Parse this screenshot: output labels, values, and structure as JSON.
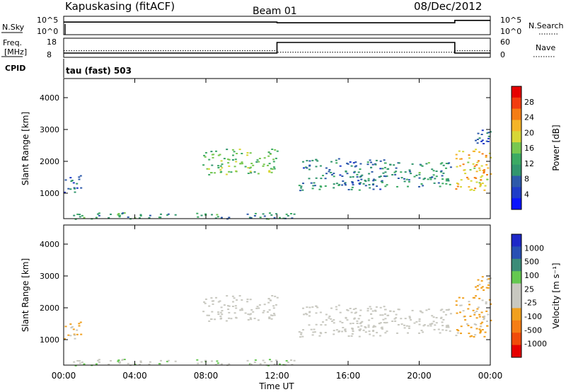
{
  "header": {
    "title": "Kapuskasing (fitACF)",
    "beam": "Beam 01",
    "date": "08/Dec/2012"
  },
  "strips": {
    "nsky_label": "N.Sky",
    "nsearch_label": "N.Search",
    "nsky_ticks": [
      "10^5",
      "10^0"
    ],
    "freq_label_1": "Freq.",
    "freq_label_2": "[MHz]",
    "freq_ticks": [
      "18",
      "8"
    ],
    "nave_label": "Nave",
    "nave_ticks": [
      "60",
      "0"
    ],
    "cpid_label": "CPID",
    "cpid_text": "tau (fast) 503"
  },
  "panels": {
    "ylabel": "Slant Range [km]",
    "yticks": [
      "4000",
      "3000",
      "2000",
      "1000"
    ],
    "xticks": [
      "00:00",
      "04:00",
      "08:00",
      "12:00",
      "16:00",
      "20:00",
      "00:00"
    ],
    "xlabel": "Time UT"
  },
  "power_scale": {
    "label": "Power [dB]",
    "ticks": [
      "28",
      "24",
      "20",
      "16",
      "12",
      "8",
      "4"
    ],
    "colors": [
      "#e60000",
      "#f23c0f",
      "#f57d14",
      "#f5b428",
      "#d7d737",
      "#78c850",
      "#3caa64",
      "#32966e",
      "#2d5aaa",
      "#1e3cc8",
      "#0a14ff"
    ]
  },
  "velocity_scale": {
    "label": "Velocity [m s⁻¹]",
    "ticks": [
      "1000",
      "500",
      "100",
      "25",
      "-25",
      "-100",
      "-500",
      "-1000"
    ],
    "colors": [
      "#1e28c8",
      "#2850b4",
      "#3c8c78",
      "#64c850",
      "#c8c8c0",
      "#c8c8c0",
      "#f0a01e",
      "#f57d14",
      "#f04b0a",
      "#e60000"
    ]
  },
  "chart_data": {
    "type": "heatmap",
    "x_unit": "hours UT",
    "xlim": [
      0,
      24
    ],
    "ylim": [
      200,
      4600
    ],
    "strips": {
      "nsky": [
        [
          0,
          3.5
        ],
        [
          12,
          3.5
        ],
        [
          12,
          3.3
        ],
        [
          22,
          3.3
        ],
        [
          22,
          4
        ],
        [
          24,
          4
        ]
      ],
      "nsearch": [
        [
          0,
          0.5
        ],
        [
          24,
          0.5
        ]
      ],
      "freq": [
        [
          0,
          10
        ],
        [
          12,
          10
        ],
        [
          12,
          16
        ],
        [
          22,
          16
        ],
        [
          22,
          10
        ],
        [
          24,
          10
        ]
      ],
      "nave": [
        [
          0,
          20
        ],
        [
          12,
          20
        ],
        [
          12,
          15
        ],
        [
          22,
          15
        ],
        [
          22,
          20
        ],
        [
          24,
          20
        ]
      ]
    },
    "echo_regions": [
      {
        "t": [
          0.0,
          1.0
        ],
        "range": [
          1000,
          1600
        ],
        "power": 6,
        "velocity": -100
      },
      {
        "t": [
          7.8,
          12.0
        ],
        "range": [
          1600,
          2400
        ],
        "power": 14,
        "velocity": 0
      },
      {
        "t": [
          13.2,
          18.0
        ],
        "range": [
          1100,
          2100
        ],
        "power": 8,
        "velocity": 0
      },
      {
        "t": [
          18.0,
          21.8
        ],
        "range": [
          1200,
          2000
        ],
        "power": 10,
        "velocity": 0
      },
      {
        "t": [
          22.0,
          24.0
        ],
        "range": [
          1100,
          2400
        ],
        "power": 20,
        "velocity": -100
      },
      {
        "t": [
          22.8,
          24.0
        ],
        "range": [
          2500,
          3000
        ],
        "power": 6,
        "velocity": -100
      },
      {
        "t": [
          0.5,
          13.0
        ],
        "range": [
          200,
          400
        ],
        "power": 10,
        "velocity": 50
      }
    ]
  }
}
